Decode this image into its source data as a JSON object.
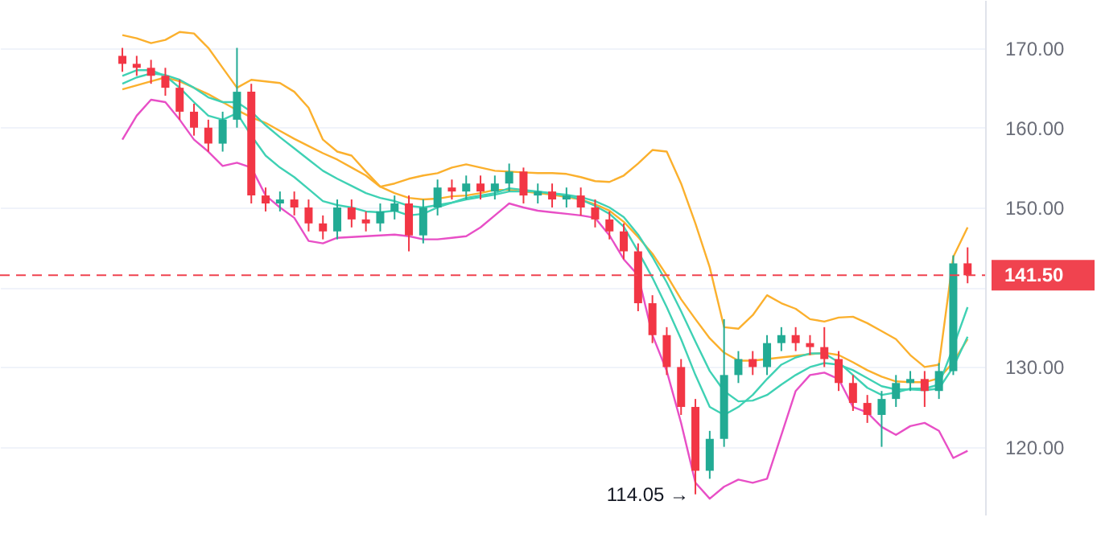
{
  "chart_data": {
    "type": "candlestick",
    "categories": [
      null,
      null,
      null,
      null,
      null,
      null,
      null,
      null,
      null,
      null,
      null,
      null,
      null,
      null,
      null,
      null,
      null,
      null,
      null,
      null,
      null,
      null,
      null,
      null,
      null,
      null,
      null,
      null,
      null,
      null,
      null,
      null,
      null,
      null,
      null,
      null,
      null,
      null,
      null,
      null,
      null,
      null,
      null,
      null,
      null,
      null,
      null,
      null,
      null,
      null,
      null,
      null,
      null,
      null,
      null,
      null,
      null,
      null,
      null,
      null
    ],
    "ohlc": [
      [
        169,
        170,
        167,
        168
      ],
      [
        168,
        169,
        166.5,
        167.5
      ],
      [
        167.5,
        168.5,
        165.5,
        166.5
      ],
      [
        166.5,
        167.5,
        164,
        165
      ],
      [
        165,
        166,
        161,
        162
      ],
      [
        162,
        163,
        159,
        160
      ],
      [
        160,
        161,
        157,
        158
      ],
      [
        158,
        162,
        157,
        161
      ],
      [
        161,
        170,
        160,
        164.5
      ],
      [
        164.5,
        165.5,
        150.5,
        151.5
      ],
      [
        151.5,
        152.5,
        149.5,
        150.5
      ],
      [
        150.5,
        152,
        149.5,
        151
      ],
      [
        151,
        152,
        149,
        150
      ],
      [
        150,
        151,
        147,
        148
      ],
      [
        148,
        149,
        146,
        147
      ],
      [
        147,
        151,
        146,
        150
      ],
      [
        150,
        151,
        147.5,
        148.5
      ],
      [
        148.5,
        149.5,
        147,
        148
      ],
      [
        148,
        150.5,
        147,
        149.5
      ],
      [
        149.5,
        151.5,
        148.5,
        150.5
      ],
      [
        150.5,
        151.5,
        144.5,
        146.5
      ],
      [
        146.5,
        151,
        145.5,
        150
      ],
      [
        150,
        153.5,
        149,
        152.5
      ],
      [
        152.5,
        153.5,
        151,
        152
      ],
      [
        152,
        154,
        151,
        153
      ],
      [
        153,
        154,
        151,
        152
      ],
      [
        152,
        154,
        151,
        153
      ],
      [
        153,
        155.5,
        152,
        154.5
      ],
      [
        154.5,
        155,
        150.5,
        151.5
      ],
      [
        151.5,
        153,
        150.5,
        152
      ],
      [
        152,
        153,
        150,
        151
      ],
      [
        151,
        152.5,
        150,
        151.5
      ],
      [
        151.5,
        152.5,
        149,
        150
      ],
      [
        150,
        151,
        147.5,
        148.5
      ],
      [
        148.5,
        149.5,
        146,
        147
      ],
      [
        147,
        148,
        143.5,
        144.5
      ],
      [
        144.5,
        145.5,
        137,
        138
      ],
      [
        138,
        139,
        133,
        134
      ],
      [
        134,
        135,
        129,
        130
      ],
      [
        130,
        131,
        124,
        125
      ],
      [
        125,
        126,
        114.05,
        117
      ],
      [
        117,
        122,
        116,
        121
      ],
      [
        121,
        136,
        120,
        129
      ],
      [
        129,
        132,
        128,
        131
      ],
      [
        131,
        132,
        129,
        130
      ],
      [
        130,
        134,
        129,
        133
      ],
      [
        133,
        135,
        132,
        134
      ],
      [
        134,
        135,
        132,
        133
      ],
      [
        133,
        134,
        131.5,
        132.5
      ],
      [
        132.5,
        135,
        130,
        131
      ],
      [
        131,
        132,
        127,
        128
      ],
      [
        128,
        129,
        124.5,
        125.5
      ],
      [
        125.5,
        126.5,
        123,
        124
      ],
      [
        124,
        127,
        120,
        126
      ],
      [
        126,
        129,
        125,
        128
      ],
      [
        128,
        129.5,
        127,
        128.5
      ],
      [
        128.5,
        129.5,
        125,
        127
      ],
      [
        127,
        130.5,
        126,
        129.5
      ],
      [
        129.5,
        144,
        129,
        143
      ],
      [
        143,
        145,
        140.5,
        141.5
      ]
    ],
    "colors": [
      "#f23645",
      "#f23645",
      "#f23645",
      "#f23645",
      "#f23645",
      "#f23645",
      "#f23645",
      "#22ab94",
      "#22ab94",
      "#f23645",
      "#f23645",
      "#22ab94",
      "#f23645",
      "#f23645",
      "#f23645",
      "#22ab94",
      "#f23645",
      "#f23645",
      "#22ab94",
      "#22ab94",
      "#f23645",
      "#22ab94",
      "#22ab94",
      "#f23645",
      "#22ab94",
      "#f23645",
      "#22ab94",
      "#22ab94",
      "#f23645",
      "#22ab94",
      "#f23645",
      "#22ab94",
      "#f23645",
      "#f23645",
      "#f23645",
      "#f23645",
      "#f23645",
      "#f23645",
      "#f23645",
      "#f23645",
      "#f23645",
      "#22ab94",
      "#22ab94",
      "#22ab94",
      "#f23645",
      "#22ab94",
      "#22ab94",
      "#f23645",
      "#f23645",
      "#f23645",
      "#f23645",
      "#f23645",
      "#f23645",
      "#22ab94",
      "#22ab94",
      "#22ab94",
      "#f23645",
      "#22ab94",
      "#22ab94",
      "#f23645"
    ],
    "series": [
      {
        "type": "line",
        "color": "#fbb02d",
        "values": [
          171.6,
          171.2,
          170.6,
          171,
          172,
          171.8,
          170,
          167.5,
          165,
          166,
          165.8,
          165.6,
          164.5,
          162.5,
          158.5,
          157,
          156.5,
          154.5,
          152.6,
          153,
          153.6,
          154,
          154.3,
          155,
          155.4,
          155,
          154.6,
          154.5,
          154.4,
          154.3,
          154.3,
          154.2,
          153.8,
          153.3,
          153.2,
          154,
          155.5,
          157.2,
          157,
          153,
          148,
          142.5,
          135,
          134.8,
          136.5,
          139,
          138,
          137.3,
          136,
          135.7,
          136.2,
          136.3,
          135.5,
          134.5,
          133.5,
          131.5,
          130,
          130.3,
          143.8,
          147.5
        ]
      },
      {
        "type": "line",
        "color": "#fbb02d",
        "values": [
          164.8,
          165.3,
          165.8,
          166.3,
          165.8,
          165,
          164.2,
          163.2,
          162.2,
          161.3,
          160.6,
          159.6,
          158.6,
          157.7,
          156.8,
          156,
          155,
          154,
          152.6,
          151.8,
          151.2,
          151,
          151.1,
          151.4,
          151.5,
          151.8,
          152.2,
          152.2,
          152,
          151.8,
          151.6,
          151.3,
          151,
          150.4,
          149.6,
          148.2,
          146.3,
          144.2,
          141.5,
          138.5,
          136,
          133.6,
          131.8,
          130.8,
          130.8,
          131,
          131.2,
          131.4,
          131.6,
          131.8,
          131.5,
          130.6,
          129.6,
          128.8,
          128.2,
          128.1,
          128.1,
          128.6,
          130.6,
          133.5
        ]
      },
      {
        "type": "line",
        "color": "#e84fc6",
        "values": [
          158.5,
          161.5,
          163.5,
          163.2,
          161,
          158.5,
          157,
          155.2,
          155.6,
          155,
          151.5,
          150,
          148.7,
          145.8,
          145.5,
          146.2,
          146.3,
          146.4,
          146.5,
          146.6,
          146.4,
          146,
          146,
          146.2,
          146.4,
          147.5,
          149,
          150.5,
          150,
          149.6,
          149.4,
          149.2,
          149,
          148.7,
          146.5,
          143.5,
          141.5,
          134,
          129.5,
          123,
          115.5,
          113.5,
          115,
          115.9,
          115.5,
          116,
          121.5,
          127,
          129,
          129.3,
          128.5,
          125,
          124.3,
          122.5,
          121.5,
          122.6,
          123,
          122,
          118.6,
          119.5
        ]
      },
      {
        "type": "line",
        "color": "#3fd1b4",
        "values": [
          166.5,
          167.2,
          167.2,
          166.5,
          165,
          163.2,
          161.5,
          161,
          161.8,
          159,
          156.5,
          155,
          153.8,
          152.3,
          150.8,
          150.3,
          150,
          149.5,
          149.4,
          149.6,
          149,
          149.2,
          150,
          150.6,
          151.2,
          151.5,
          151.8,
          152.4,
          152.2,
          152,
          151.7,
          151.5,
          151,
          150.2,
          149.2,
          147.6,
          144.5,
          141.2,
          137.5,
          133.5,
          129,
          125,
          124,
          125,
          126.5,
          128.5,
          130.3,
          131.2,
          131.7,
          131.7,
          130.6,
          129,
          127.4,
          126.5,
          126.8,
          127.3,
          127.3,
          127.8,
          132.5,
          137.5
        ]
      },
      {
        "type": "line",
        "color": "#3fd1b4",
        "values": [
          165.5,
          166.3,
          166.8,
          166.6,
          166,
          165,
          163.8,
          163.2,
          163.2,
          162,
          160.3,
          158.8,
          157.4,
          156,
          154.6,
          153.6,
          152.7,
          151.8,
          151.2,
          150.8,
          150.2,
          150,
          150.3,
          150.6,
          151,
          151.3,
          151.6,
          152,
          152,
          152,
          151.8,
          151.6,
          151.3,
          150.8,
          150,
          148.8,
          146.6,
          143.8,
          140.6,
          137,
          133.2,
          129.5,
          127,
          125.7,
          125.8,
          126.5,
          127.8,
          129,
          130,
          130.5,
          130.3,
          129.6,
          128.6,
          127.6,
          127.2,
          127.2,
          127.1,
          127.3,
          130,
          133.8
        ]
      }
    ],
    "ylim": [
      111.5,
      176
    ],
    "yticks": [
      {
        "value": 120,
        "label": "120.00"
      },
      {
        "value": 130,
        "label": "130.00"
      },
      {
        "value": 140,
        "label": null
      },
      {
        "value": 150,
        "label": "150.00"
      },
      {
        "value": 160,
        "label": "160.00"
      },
      {
        "value": 170,
        "label": "170.00"
      }
    ],
    "grid": "y",
    "tick_labels": "y",
    "ref_lines": [
      {
        "axis": "y",
        "value": 141.5,
        "label": "141.50",
        "color": "#f0434f",
        "line_style": "dashed"
      }
    ],
    "annotations": [
      "114.05 →"
    ]
  }
}
